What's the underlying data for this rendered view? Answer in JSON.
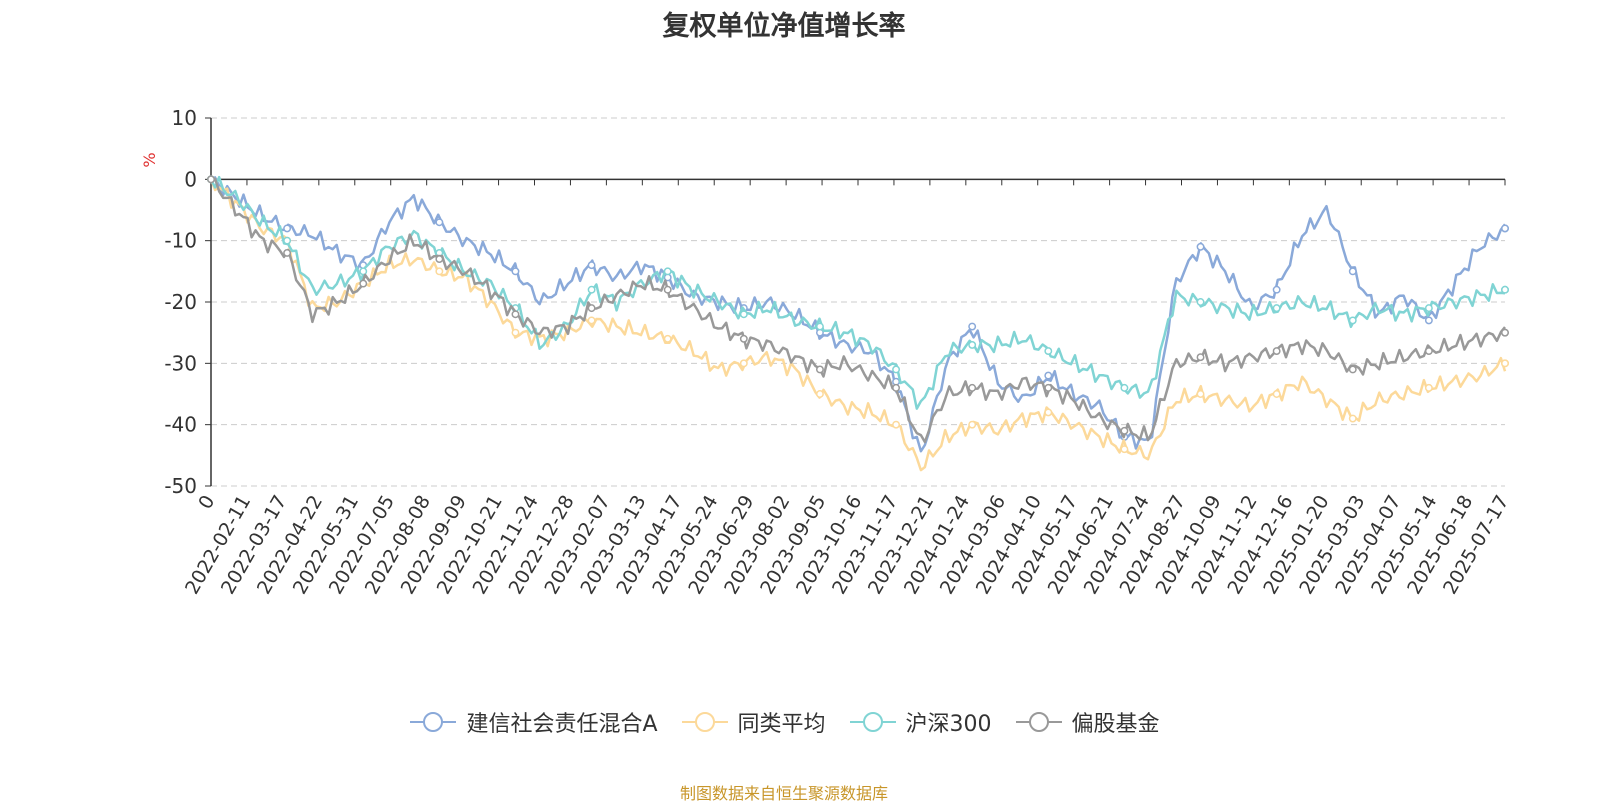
{
  "chart_data": {
    "type": "line",
    "title": "复权单位净值增长率",
    "ylabel": "%",
    "ylim": [
      -50,
      10
    ],
    "yticks": [
      10,
      0,
      -10,
      -20,
      -30,
      -40,
      -50
    ],
    "grid": true,
    "legend_position": "bottom",
    "x_tick_labels": [
      "0",
      "2022-02-11",
      "2022-03-17",
      "2022-04-22",
      "2022-05-31",
      "2022-07-05",
      "2022-08-08",
      "2022-09-09",
      "2022-10-21",
      "2022-11-24",
      "2022-12-28",
      "2023-02-07",
      "2023-03-13",
      "2023-04-17",
      "2023-05-24",
      "2023-06-29",
      "2023-08-02",
      "2023-09-05",
      "2023-10-16",
      "2023-11-17",
      "2023-12-21",
      "2024-01-24",
      "2024-03-06",
      "2024-04-10",
      "2024-05-17",
      "2024-06-21",
      "2024-07-24",
      "2024-08-27",
      "2024-10-09",
      "2024-11-12",
      "2024-12-16",
      "2025-01-20",
      "2025-03-03",
      "2025-04-07",
      "2025-05-14",
      "2025-06-18",
      "2025-07-17"
    ],
    "series": [
      {
        "name": "建信社会责任混合A",
        "color": "#8aa9d9",
        "values": [
          0,
          -3,
          -6,
          -8,
          -9,
          -12,
          -14,
          -7,
          -3,
          -7,
          -10,
          -12,
          -15,
          -20,
          -17,
          -14,
          -16,
          -14,
          -16,
          -19,
          -20,
          -21,
          -20,
          -22,
          -25,
          -27,
          -28,
          -33,
          -45,
          -30,
          -24,
          -33,
          -36,
          -32,
          -35,
          -37,
          -42,
          -43,
          -17,
          -11,
          -15,
          -21,
          -18,
          -9,
          -5,
          -15,
          -22,
          -19,
          -23,
          -17,
          -11,
          -8
        ]
      },
      {
        "name": "同类平均",
        "color": "#fcd99a",
        "values": [
          0,
          -4,
          -8,
          -10,
          -21,
          -20,
          -17,
          -14,
          -13,
          -15,
          -16,
          -20,
          -25,
          -26,
          -25,
          -23,
          -24,
          -25,
          -26,
          -28,
          -31,
          -30,
          -29,
          -31,
          -35,
          -37,
          -38,
          -40,
          -47,
          -42,
          -40,
          -41,
          -39,
          -38,
          -40,
          -42,
          -44,
          -45,
          -36,
          -35,
          -36,
          -37,
          -35,
          -33,
          -36,
          -39,
          -36,
          -35,
          -34,
          -33,
          -32,
          -30
        ]
      },
      {
        "name": "沪深300",
        "color": "#80d4d4",
        "values": [
          0,
          -3,
          -7,
          -10,
          -18,
          -17,
          -15,
          -11,
          -9,
          -12,
          -15,
          -17,
          -21,
          -27,
          -24,
          -18,
          -20,
          -17,
          -15,
          -18,
          -20,
          -22,
          -21,
          -23,
          -24,
          -25,
          -27,
          -31,
          -37,
          -28,
          -27,
          -27,
          -26,
          -28,
          -30,
          -32,
          -34,
          -35,
          -19,
          -20,
          -21,
          -22,
          -21,
          -20,
          -21,
          -23,
          -21,
          -22,
          -21,
          -20,
          -19,
          -18
        ]
      },
      {
        "name": "偏股基金",
        "color": "#999999",
        "values": [
          0,
          -5,
          -10,
          -12,
          -22,
          -20,
          -17,
          -13,
          -10,
          -13,
          -15,
          -18,
          -22,
          -25,
          -24,
          -21,
          -19,
          -17,
          -18,
          -21,
          -24,
          -26,
          -27,
          -29,
          -31,
          -30,
          -32,
          -34,
          -43,
          -35,
          -34,
          -35,
          -33,
          -34,
          -36,
          -39,
          -41,
          -42,
          -30,
          -29,
          -30,
          -29,
          -28,
          -27,
          -28,
          -31,
          -30,
          -29,
          -28,
          -27,
          -26,
          -25
        ]
      }
    ]
  },
  "source_note": "制图数据来自恒生聚源数据库"
}
